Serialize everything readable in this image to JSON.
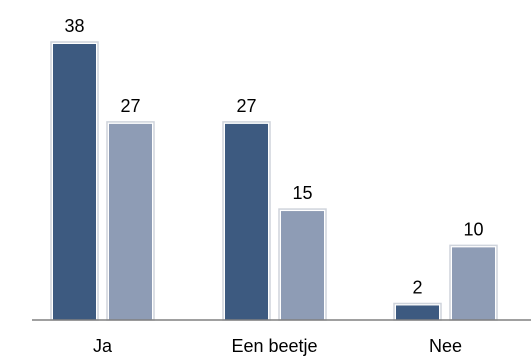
{
  "chart_data": {
    "type": "bar",
    "categories": [
      "Ja",
      "Een beetje",
      "Nee"
    ],
    "series": [
      {
        "values": [
          38,
          27,
          2
        ],
        "color": "#3d5a80"
      },
      {
        "values": [
          27,
          15,
          10
        ],
        "color": "#8e9cb5"
      }
    ],
    "data_labels": true,
    "grid": false,
    "ylim": [
      0,
      38
    ]
  }
}
